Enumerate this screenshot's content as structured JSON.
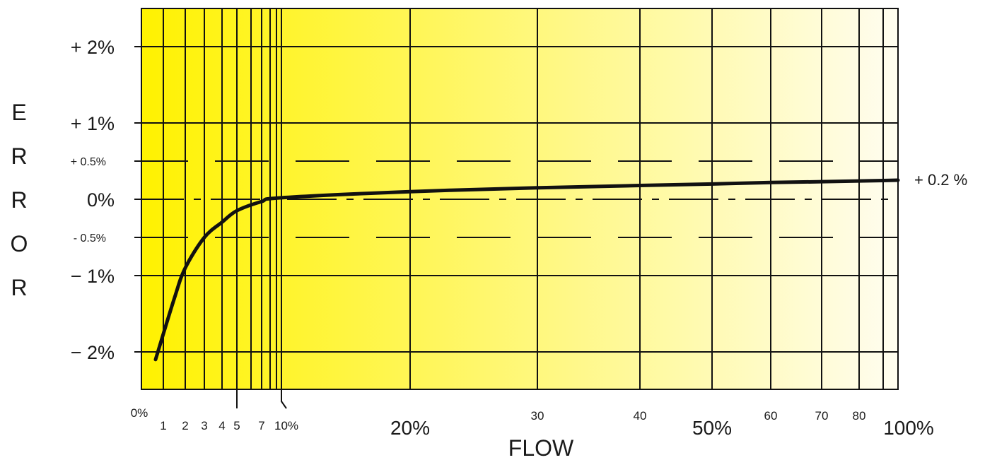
{
  "chart_data": {
    "type": "line",
    "title": "",
    "ylabel": "ERROR",
    "xlabel": "FLOW",
    "background_gradient": [
      "#fff200",
      "#fffdf0"
    ],
    "ylim": [
      -2.5,
      2.5
    ],
    "y_ticks": [
      {
        "value": 2,
        "label": "+ 2%",
        "size": "big"
      },
      {
        "value": 1,
        "label": "+ 1%",
        "size": "big"
      },
      {
        "value": 0.5,
        "label": "+ 0.5%",
        "size": "small"
      },
      {
        "value": 0,
        "label": "0%",
        "size": "big"
      },
      {
        "value": -0.5,
        "label": "- 0.5%",
        "size": "small"
      },
      {
        "value": -1,
        "label": "− 1%",
        "size": "big"
      },
      {
        "value": -2,
        "label": "− 2%",
        "size": "big"
      }
    ],
    "x_gridlines": [
      0,
      1,
      2,
      3,
      4,
      5,
      6,
      7,
      8,
      9,
      10,
      20,
      30,
      40,
      50,
      60,
      70,
      80,
      90,
      100
    ],
    "x_tick_labels": [
      {
        "value": 0,
        "label": "0%",
        "size": "small",
        "row": "high"
      },
      {
        "value": 1,
        "label": "1",
        "size": "small",
        "row": "low"
      },
      {
        "value": 2,
        "label": "2",
        "size": "small",
        "row": "low"
      },
      {
        "value": 3,
        "label": "3",
        "size": "small",
        "row": "low"
      },
      {
        "value": 4,
        "label": "4",
        "size": "small",
        "row": "low"
      },
      {
        "value": 5,
        "label": "5",
        "size": "small",
        "row": "low"
      },
      {
        "value": 7,
        "label": "7",
        "size": "small",
        "row": "low"
      },
      {
        "value": 10,
        "label": "10%",
        "size": "small",
        "row": "low"
      },
      {
        "value": 20,
        "label": "20%",
        "size": "big",
        "row": "low"
      },
      {
        "value": 30,
        "label": "30",
        "size": "small",
        "row": "high"
      },
      {
        "value": 40,
        "label": "40",
        "size": "small",
        "row": "high"
      },
      {
        "value": 50,
        "label": "50%",
        "size": "big",
        "row": "low"
      },
      {
        "value": 60,
        "label": "60",
        "size": "small",
        "row": "high"
      },
      {
        "value": 70,
        "label": "70",
        "size": "small",
        "row": "high"
      },
      {
        "value": 80,
        "label": "80",
        "size": "small",
        "row": "high"
      },
      {
        "value": 100,
        "label": "100%",
        "size": "big",
        "row": "low"
      }
    ],
    "tolerance_band": [
      -0.5,
      0.5
    ],
    "series": [
      {
        "x": [
          1,
          1.5,
          2,
          3,
          4,
          5,
          7,
          10,
          20,
          30,
          40,
          50,
          60,
          70,
          80,
          90,
          100
        ],
        "y": [
          -2.1,
          -1.3,
          -0.9,
          -0.5,
          -0.3,
          -0.15,
          -0.03,
          0.02,
          0.1,
          0.15,
          0.18,
          0.2,
          0.22,
          0.23,
          0.24,
          0.245,
          0.25
        ]
      }
    ],
    "end_annotation": "+ 0.2 %"
  }
}
